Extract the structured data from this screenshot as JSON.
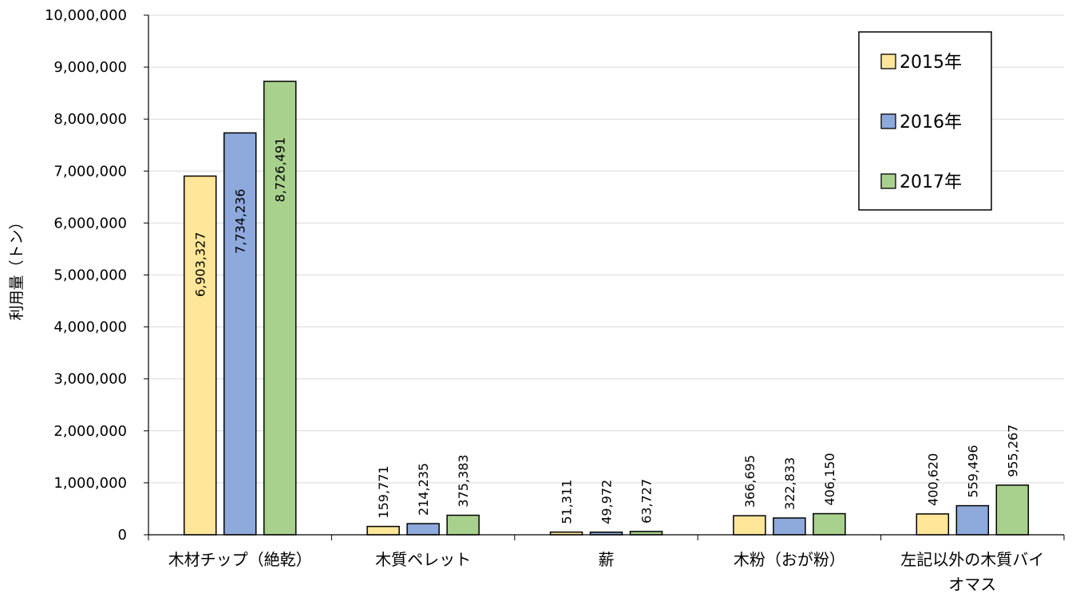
{
  "chart_data": {
    "type": "bar",
    "title": "",
    "xlabel": "",
    "ylabel": "利用量（トン）",
    "ylim": [
      0,
      10000000
    ],
    "yticks": [
      "0",
      "1,000,000",
      "2,000,000",
      "3,000,000",
      "4,000,000",
      "5,000,000",
      "6,000,000",
      "7,000,000",
      "8,000,000",
      "9,000,000",
      "10,000,000"
    ],
    "ytick_values": [
      0,
      1000000,
      2000000,
      3000000,
      4000000,
      5000000,
      6000000,
      7000000,
      8000000,
      9000000,
      10000000
    ],
    "grid": true,
    "legend_position": "top-right",
    "categories": [
      [
        "木材チップ（絶乾）"
      ],
      [
        "木質ペレット"
      ],
      [
        "薪"
      ],
      [
        "木粉（おが粉）"
      ],
      [
        "左記以外の木質バイ",
        "オマス"
      ]
    ],
    "series": [
      {
        "name": "2015年",
        "color": "#FFE699",
        "values": [
          6903327,
          159771,
          51311,
          366695,
          400620
        ],
        "labels": [
          "6,903,327",
          "159,771",
          "51,311",
          "366,695",
          "400,620"
        ]
      },
      {
        "name": "2016年",
        "color": "#8EA9DB",
        "values": [
          7734236,
          214235,
          49972,
          322833,
          559496
        ],
        "labels": [
          "7,734,236",
          "214,235",
          "49,972",
          "322,833",
          "559,496"
        ]
      },
      {
        "name": "2017年",
        "color": "#A9D18E",
        "values": [
          8726491,
          375383,
          63727,
          406150,
          955267
        ],
        "labels": [
          "8,726,491",
          "375,383",
          "63,727",
          "406,150",
          "955,267"
        ]
      }
    ]
  }
}
